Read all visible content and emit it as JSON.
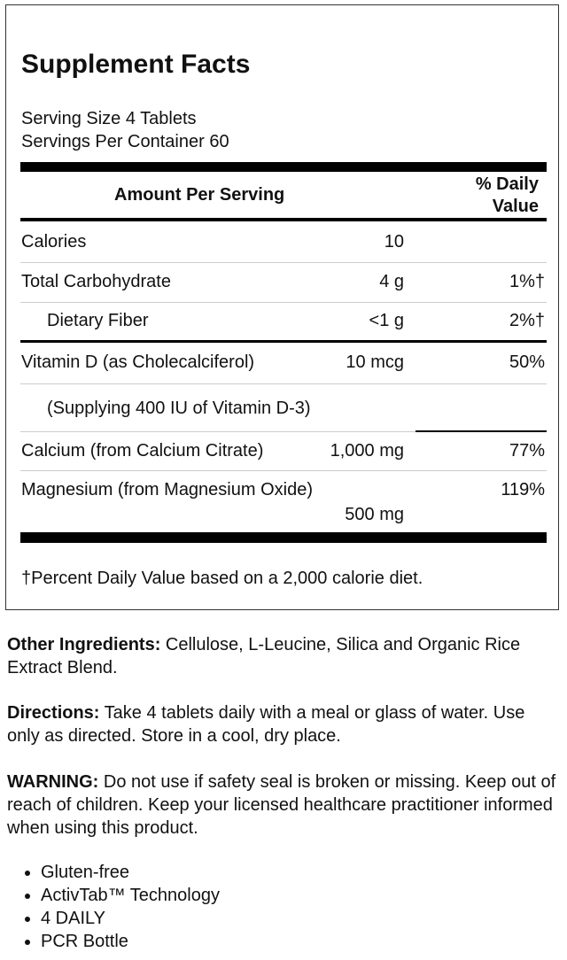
{
  "title": "Supplement Facts",
  "serving_size": "Serving Size 4 Tablets",
  "servings_per_container": "Servings Per Container 60",
  "header": {
    "amount": "Amount Per Serving",
    "dv_line1": "% Daily",
    "dv_line2": "Value"
  },
  "rows": [
    {
      "name": "Calories",
      "amount": "10",
      "dv": ""
    },
    {
      "name": "Total Carbohydrate",
      "amount": "4 g",
      "dv": "1%†"
    },
    {
      "name": "Dietary Fiber",
      "amount": "<1 g",
      "dv": "2%†"
    },
    {
      "name": "Vitamin D (as Cholecalciferol)",
      "amount": "10 mcg",
      "dv": "50%"
    },
    {
      "name": "(Supplying 400 IU of Vitamin D-3)",
      "amount": "",
      "dv": ""
    },
    {
      "name": "Calcium (from Calcium Citrate)",
      "amount": "1,000 mg",
      "dv": "77%"
    },
    {
      "name": "Magnesium (from Magnesium Oxide)",
      "amount": "500 mg",
      "dv": "119%"
    }
  ],
  "footnote": "†Percent Daily Value based on a 2,000 calorie diet.",
  "other_ingredients": {
    "label": "Other Ingredients:",
    "text": " Cellulose, L-Leucine, Silica and Organic Rice Extract Blend."
  },
  "directions": {
    "label": "Directions:",
    "text": " Take 4 tablets daily with a meal or glass of water. Use only as directed. Store in a cool, dry place."
  },
  "warning": {
    "label": "WARNING:",
    "text": " Do not use if safety seal is broken or missing. Keep out of reach of children. Keep your licensed healthcare practitioner informed when using this product."
  },
  "features": [
    "Gluten-free",
    "ActivTab™ Technology",
    "4 DAILY",
    "PCR Bottle"
  ]
}
